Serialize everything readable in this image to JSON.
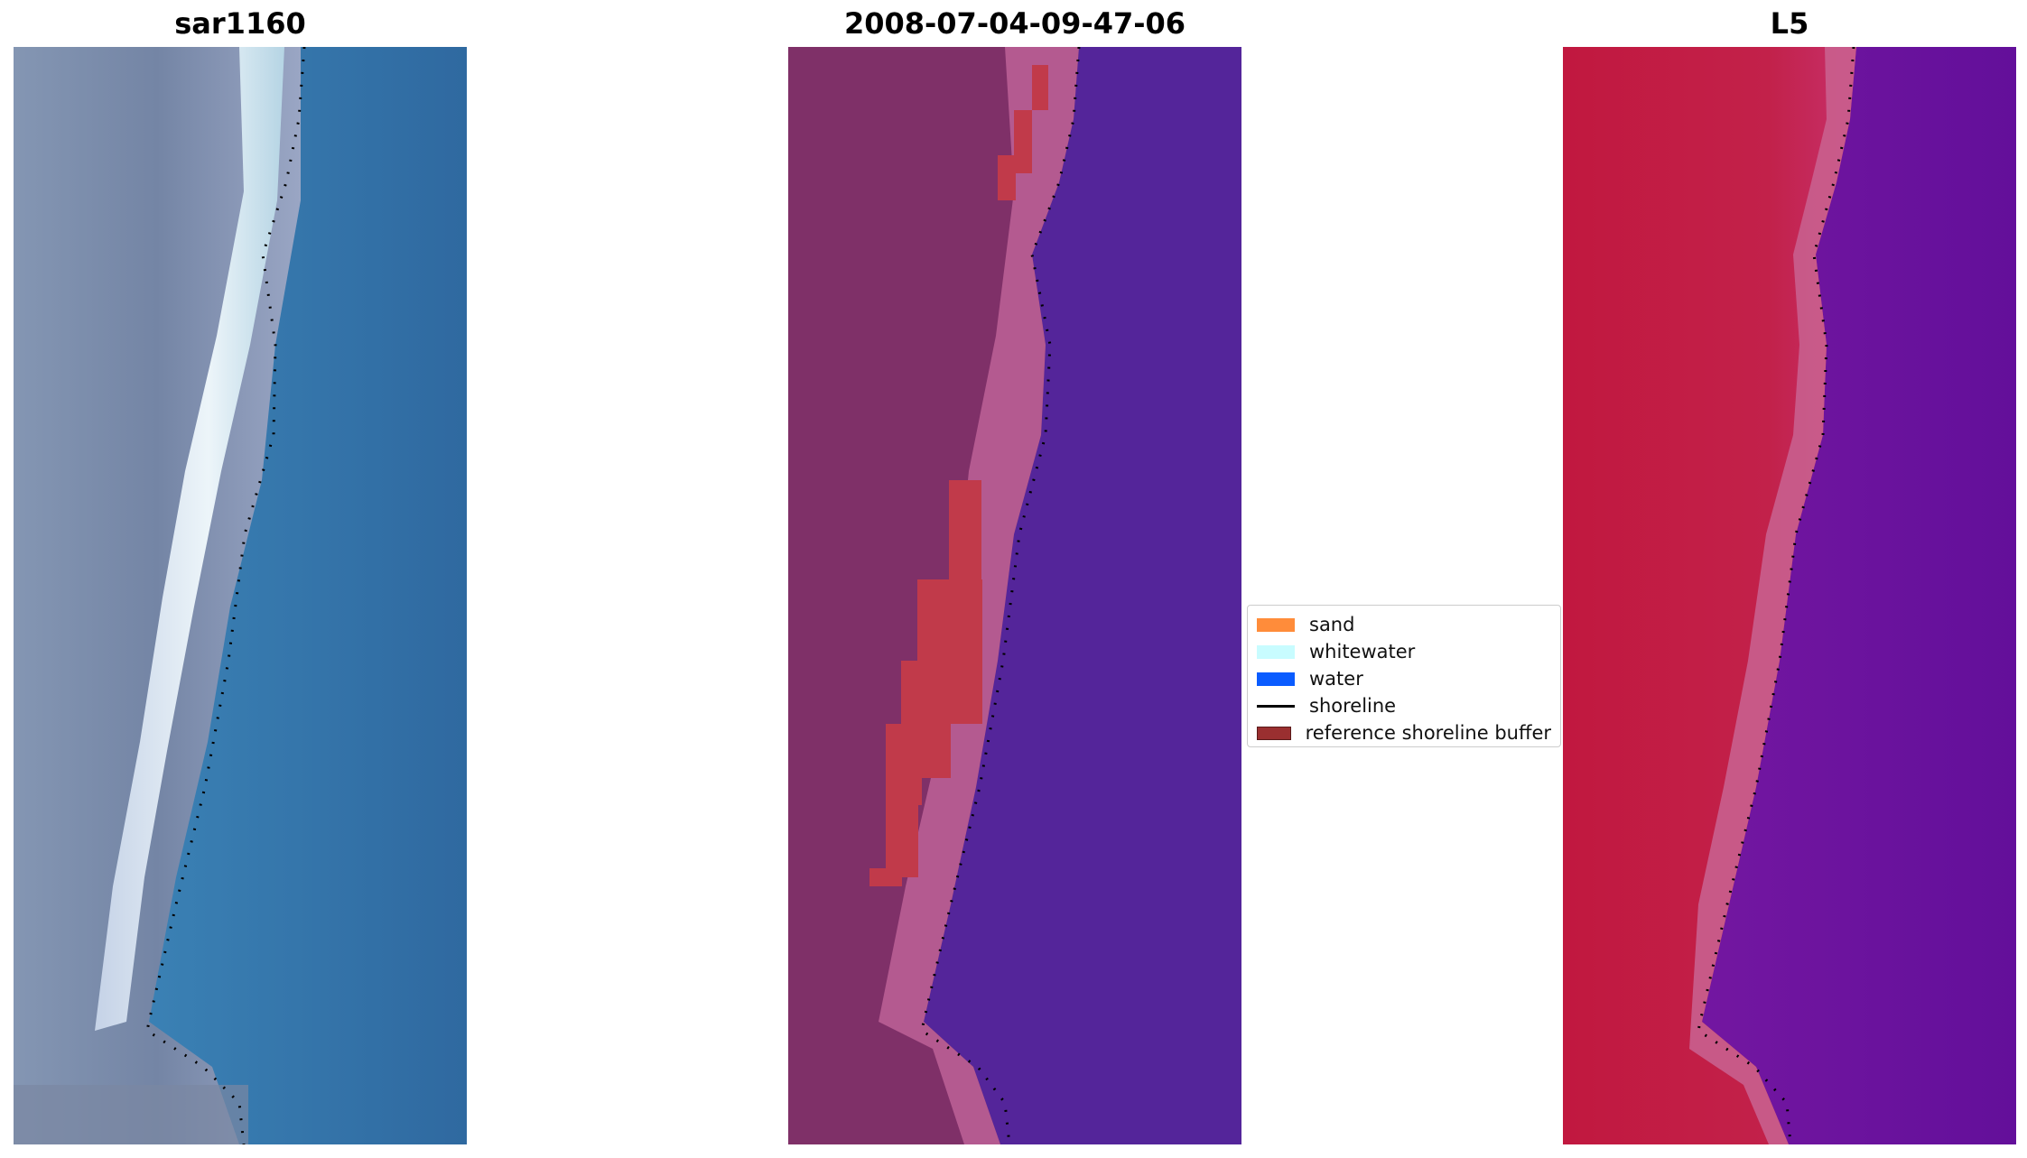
{
  "panels": [
    {
      "title": "sar1160"
    },
    {
      "title": "2008-07-04-09-47-06"
    },
    {
      "title": "L5"
    }
  ],
  "legend": {
    "items": [
      {
        "label": "sand",
        "color": "#ff8c3a",
        "kind": "patch"
      },
      {
        "label": "whitewater",
        "color": "#c8fcff",
        "kind": "patch"
      },
      {
        "label": "water",
        "color": "#0a5cff",
        "kind": "patch"
      },
      {
        "label": "shoreline",
        "color": "#000000",
        "kind": "line"
      },
      {
        "label": "reference shoreline buffer",
        "color": "#9a2f30",
        "kind": "patch"
      }
    ]
  },
  "colors": {
    "rgb_land": "#7c8ba8",
    "rgb_water": "#3a7fb2",
    "rgb_whitewater": "#e4f2f6",
    "class_land": "#7f3068",
    "class_sand_edge": "#b45a90",
    "class_water": "#54259a",
    "class_buffer_overlay": "#c13a4a",
    "ndwi_land": "#c21d45",
    "ndwi_edge": "#c95f8e",
    "ndwi_water": "#6a139d",
    "shoreline": "#000000"
  }
}
